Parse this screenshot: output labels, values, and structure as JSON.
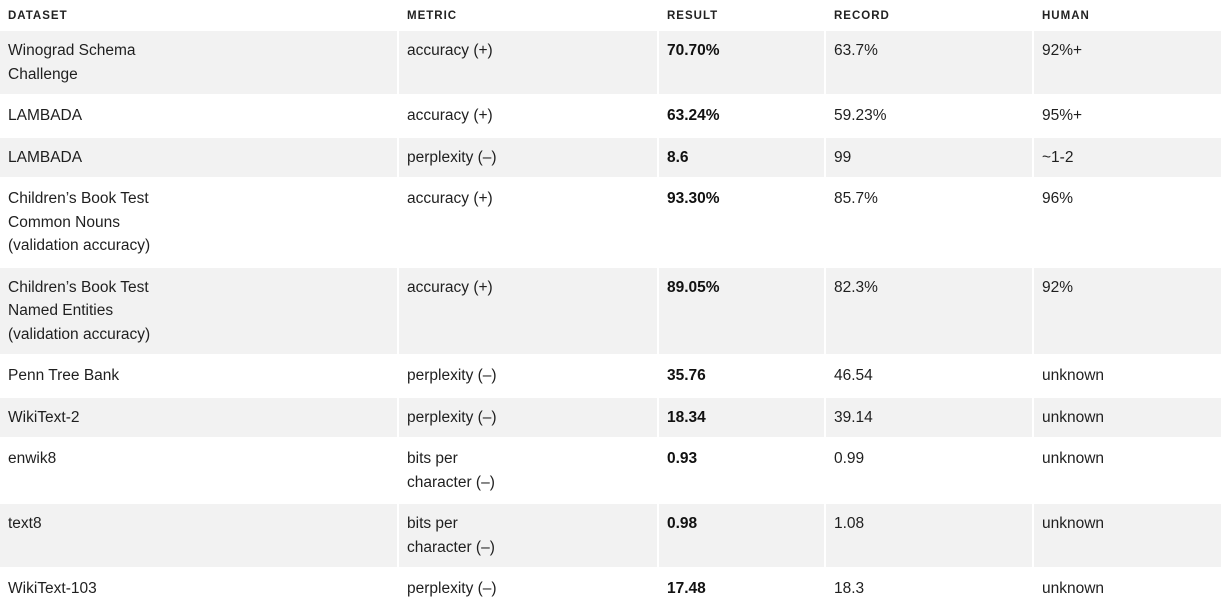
{
  "table": {
    "headers": [
      "DATASET",
      "METRIC",
      "RESULT",
      "RECORD",
      "HUMAN"
    ],
    "rows": [
      {
        "dataset": "Winograd Schema\nChallenge",
        "metric": "accuracy (+)",
        "result": "70.70%",
        "record": "63.7%",
        "human": "92%+"
      },
      {
        "dataset": "LAMBADA",
        "metric": "accuracy (+)",
        "result": "63.24%",
        "record": "59.23%",
        "human": "95%+"
      },
      {
        "dataset": "LAMBADA",
        "metric": "perplexity (–)",
        "result": "8.6",
        "record": "99",
        "human": "~1-2"
      },
      {
        "dataset": "Children’s Book Test\nCommon Nouns\n(validation accuracy)",
        "metric": "accuracy (+)",
        "result": "93.30%",
        "record": "85.7%",
        "human": "96%"
      },
      {
        "dataset": "Children’s Book Test\nNamed Entities\n(validation accuracy)",
        "metric": "accuracy (+)",
        "result": "89.05%",
        "record": "82.3%",
        "human": "92%"
      },
      {
        "dataset": "Penn Tree Bank",
        "metric": "perplexity (–)",
        "result": "35.76",
        "record": "46.54",
        "human": "unknown"
      },
      {
        "dataset": "WikiText-2",
        "metric": "perplexity (–)",
        "result": "18.34",
        "record": "39.14",
        "human": "unknown"
      },
      {
        "dataset": "enwik8",
        "metric": "bits per\ncharacter (–)",
        "result": "0.93",
        "record": "0.99",
        "human": "unknown"
      },
      {
        "dataset": "text8",
        "metric": "bits per\ncharacter (–)",
        "result": "0.98",
        "record": "1.08",
        "human": "unknown"
      },
      {
        "dataset": "WikiText-103",
        "metric": "perplexity (–)",
        "result": "17.48",
        "record": "18.3",
        "human": "unknown"
      }
    ]
  }
}
